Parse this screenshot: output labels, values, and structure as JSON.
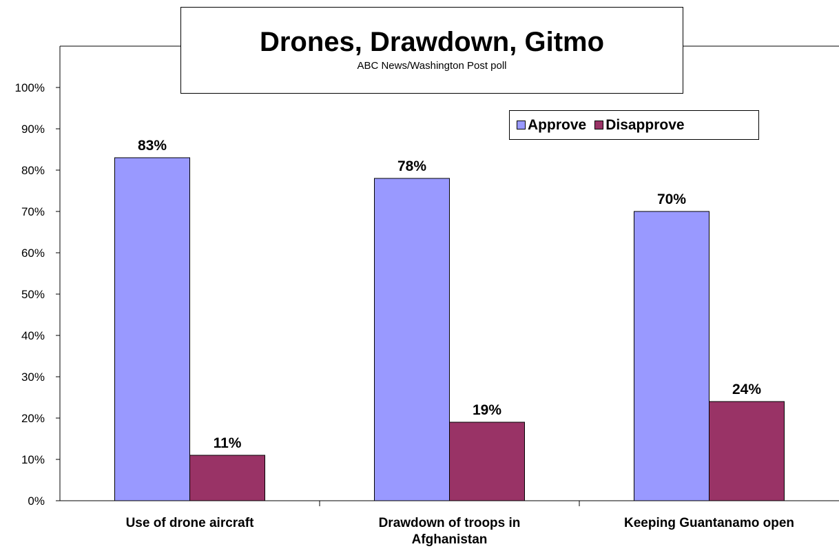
{
  "chart_data": {
    "type": "bar",
    "title": "Drones, Drawdown, Gitmo",
    "subtitle": "ABC News/Washington Post poll",
    "categories": [
      [
        "Use of drone aircraft"
      ],
      [
        "Drawdown of troops in",
        "Afghanistan"
      ],
      [
        "Keeping Guantanamo open"
      ]
    ],
    "series": [
      {
        "name": "Approve",
        "color": "#9999ff",
        "values": [
          83,
          78,
          70
        ],
        "labels": [
          "83%",
          "78%",
          "70%"
        ]
      },
      {
        "name": "Disapprove",
        "color": "#993366",
        "values": [
          11,
          19,
          24
        ],
        "labels": [
          "11%",
          "19%",
          "24%"
        ]
      }
    ],
    "ylim": [
      0,
      100
    ],
    "yticks": [
      "0%",
      "10%",
      "20%",
      "30%",
      "40%",
      "50%",
      "60%",
      "70%",
      "80%",
      "90%",
      "100%"
    ],
    "xlabel": "",
    "ylabel": "",
    "grid": false,
    "legend_position": "top-right"
  }
}
